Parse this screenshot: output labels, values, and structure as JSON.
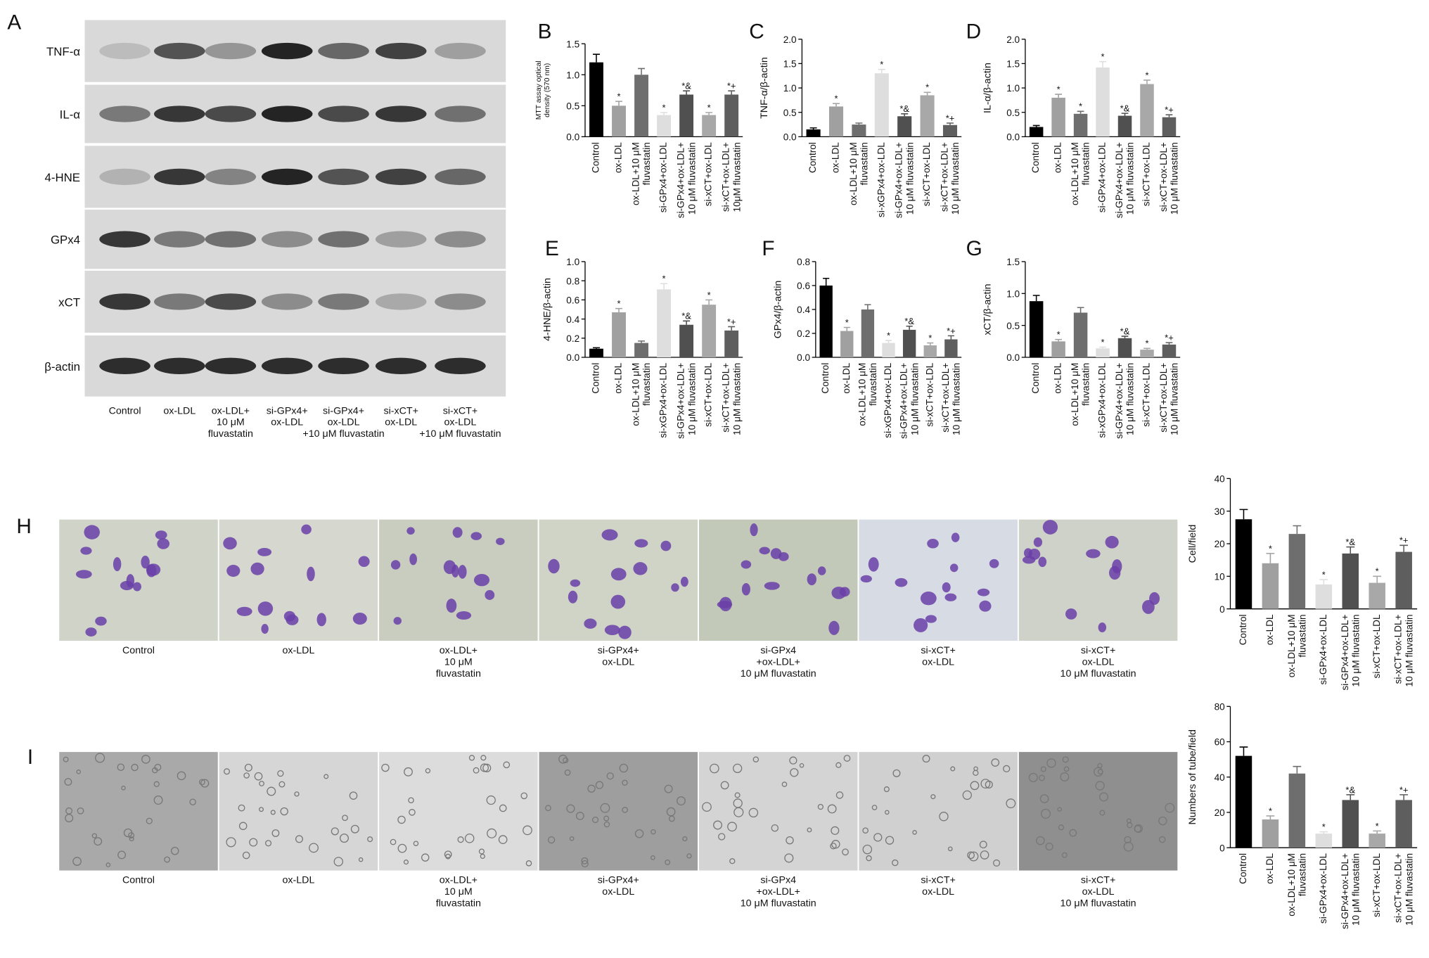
{
  "blot": {
    "panel": "A",
    "rows": [
      "TNF-α",
      "IL-α",
      "4-HNE",
      "GPx4",
      "xCT",
      "β-actin"
    ],
    "lanes": [
      "Control",
      "ox-LDL",
      "ox-LDL+\n10 μM\nfluvastatin",
      "si-GPx4+\nox-LDL",
      "si-GPx4+\nox-LDL\n+10 μM fluvastatin",
      "si-xCT+\nox-LDL",
      "si-xCT+\nox-LDL\n+10 μM fluvastatin"
    ]
  },
  "migration": {
    "captions": [
      "Control",
      "ox-LDL",
      "ox-LDL+\n10 μM\nfluvastatin",
      "si-GPx4+\nox-LDL",
      "si-GPx4\n+ox-LDL+\n10 μM fluvastatin",
      "si-xCT+\nox-LDL",
      "si-xCT+\nox-LDL\n10 μM fluvastatin"
    ]
  },
  "tube": {
    "panel": "I",
    "captions": [
      "Control",
      "ox-LDL",
      "ox-LDL+\n10 μM\nfluvastatin",
      "si-GPx4+\nox-LDL",
      "si-GPx4\n+ox-LDL+\n10 μM fluvastatin",
      "si-xCT+\nox-LDL",
      "si-xCT+\nox-LDL\n10 μM fluvastatin"
    ]
  },
  "chart_data": [
    {
      "type": "bar",
      "panel": "B",
      "ylabel": "MTT assay optical\ndensity (570 nm)",
      "categories": [
        "Control",
        "ox-LDL",
        "ox-LDL+10 μM\nfluvastatin",
        "si-GPx4+ox-LDL",
        "si-GPx4+ox-LDL+\n10 μM fluvastatin",
        "si-xCT+ox-LDL",
        "si-xCT+ox-LDL+\n10μM fluvastatin"
      ],
      "values": [
        1.2,
        0.5,
        1.0,
        0.35,
        0.68,
        0.35,
        0.68
      ],
      "errors": [
        0.13,
        0.07,
        0.1,
        0.04,
        0.06,
        0.04,
        0.06
      ],
      "annotations": [
        null,
        "*",
        null,
        "*",
        "*&",
        "*",
        "*+"
      ],
      "colors": [
        "#000000",
        "#a0a0a0",
        "#6e6e6e",
        "#dedede",
        "#505050",
        "#a8a8a8",
        "#5e5e5e"
      ],
      "ylim": [
        0,
        1.5
      ],
      "yticks": [
        {
          "value": 0,
          "label": "0.0"
        },
        0.5,
        {
          "value": 1,
          "label": "1.0"
        },
        1.5
      ]
    },
    {
      "type": "bar",
      "panel": "C",
      "ylabel": "TNF-α/β-actin",
      "categories": [
        "Control",
        "ox-LDL",
        "ox-LDL+10 μM\nfluvastatin",
        "si-xGPx4+ox-LDL",
        "si-GPx4+ox-LDL+\n10 μM fluvastatin",
        "si-xCT+ox-LDL",
        "si-xCT+ox-LDL+\n10 μM fluvastatin"
      ],
      "values": [
        0.15,
        0.62,
        0.25,
        1.3,
        0.42,
        0.85,
        0.24
      ],
      "errors": [
        0.03,
        0.06,
        0.03,
        0.08,
        0.05,
        0.06,
        0.04
      ],
      "annotations": [
        null,
        "*",
        null,
        "*",
        "*&",
        "*",
        "*+"
      ],
      "colors": [
        "#000000",
        "#a0a0a0",
        "#6e6e6e",
        "#dedede",
        "#505050",
        "#a8a8a8",
        "#5e5e5e"
      ],
      "ylim": [
        0,
        2
      ],
      "yticks": [
        {
          "value": 0,
          "label": "0.0"
        },
        0.5,
        {
          "value": 1,
          "label": "1.0"
        },
        1.5,
        {
          "value": 2,
          "label": "2.0"
        }
      ]
    },
    {
      "type": "bar",
      "panel": "D",
      "ylabel": "IL-α/β-actin",
      "categories": [
        "Control",
        "ox-LDL",
        "ox-LDL+10 μM\nfluvastatin",
        "si-GPx4+ox-LDL",
        "si-GPx4+ox-LDL+\n10 μM fluvastatin",
        "si-xCT+ox-LDL",
        "si-xCT+ox-LDL+\n10 μM fluvastatin"
      ],
      "values": [
        0.2,
        0.8,
        0.47,
        1.42,
        0.43,
        1.08,
        0.4
      ],
      "errors": [
        0.03,
        0.07,
        0.05,
        0.12,
        0.05,
        0.08,
        0.05
      ],
      "annotations": [
        null,
        "*",
        "*",
        "*",
        "*&",
        "*",
        "*+"
      ],
      "colors": [
        "#000000",
        "#a0a0a0",
        "#6e6e6e",
        "#dedede",
        "#505050",
        "#a8a8a8",
        "#5e5e5e"
      ],
      "ylim": [
        0,
        2
      ],
      "yticks": [
        {
          "value": 0,
          "label": "0.0"
        },
        0.5,
        {
          "value": 1,
          "label": "1.0"
        },
        1.5,
        {
          "value": 2,
          "label": "2.0"
        }
      ]
    },
    {
      "type": "bar",
      "panel": "E",
      "ylabel": "4-HNE/β-actin",
      "categories": [
        "Control",
        "ox-LDL",
        "ox-LDL+10 μM\nfluvastatin",
        "si-xGPx4+ox-LDL",
        "si-GPx4+ox-LDL+\n10 μM fluvastatin",
        "si-xCT+ox-LDL",
        "si-xCT+ox-LDL+\n10 μM fluvastatin"
      ],
      "values": [
        0.09,
        0.47,
        0.15,
        0.71,
        0.34,
        0.55,
        0.28
      ],
      "errors": [
        0.01,
        0.04,
        0.02,
        0.06,
        0.04,
        0.05,
        0.04
      ],
      "annotations": [
        null,
        "*",
        null,
        "*",
        "*&",
        "*",
        "*+"
      ],
      "colors": [
        "#000000",
        "#a0a0a0",
        "#6e6e6e",
        "#dedede",
        "#505050",
        "#a8a8a8",
        "#5e5e5e"
      ],
      "ylim": [
        0,
        1
      ],
      "yticks": [
        {
          "value": 0,
          "label": "0.0"
        },
        0.2,
        0.4,
        0.6,
        0.8,
        {
          "value": 1,
          "label": "1.0"
        }
      ]
    },
    {
      "type": "bar",
      "panel": "F",
      "ylabel": "GPx4/β-actin",
      "categories": [
        "Control",
        "ox-LDL",
        "ox-LDL+10 μM\nfluvastatin",
        "si-xGPx4+ox-LDL",
        "si-GPx4+ox-LDL+\n10 μM fluvastatin",
        "si-xCT+ox-LDL",
        "si-xCT+ox-LDL+\n10 μM fluvastatin"
      ],
      "values": [
        0.6,
        0.22,
        0.4,
        0.12,
        0.23,
        0.1,
        0.15
      ],
      "errors": [
        0.06,
        0.03,
        0.04,
        0.02,
        0.03,
        0.02,
        0.03
      ],
      "annotations": [
        null,
        "*",
        null,
        "*",
        "*&",
        "*",
        "*+"
      ],
      "colors": [
        "#000000",
        "#a0a0a0",
        "#6e6e6e",
        "#dedede",
        "#505050",
        "#a8a8a8",
        "#5e5e5e"
      ],
      "ylim": [
        0,
        0.8
      ],
      "yticks": [
        {
          "value": 0,
          "label": "0.0"
        },
        0.2,
        0.4,
        0.6,
        0.8
      ]
    },
    {
      "type": "bar",
      "panel": "G",
      "ylabel": "xCT/β-actin",
      "categories": [
        "Control",
        "ox-LDL",
        "ox-LDL+10 μM\nfluvastatin",
        "si-xGPx4+ox-LDL",
        "si-GPx4+ox-LDL+\n10 μM fluvastatin",
        "si-xCT+ox-LDL",
        "si-xCT+ox-LDL+\n10 μM fluvastatin"
      ],
      "values": [
        0.88,
        0.25,
        0.7,
        0.14,
        0.3,
        0.12,
        0.2
      ],
      "errors": [
        0.09,
        0.03,
        0.08,
        0.02,
        0.03,
        0.02,
        0.03
      ],
      "annotations": [
        null,
        "*",
        null,
        "*",
        "*&",
        "*",
        "*+"
      ],
      "colors": [
        "#000000",
        "#a0a0a0",
        "#6e6e6e",
        "#dedede",
        "#505050",
        "#a8a8a8",
        "#5e5e5e"
      ],
      "ylim": [
        0,
        1.5
      ],
      "yticks": [
        {
          "value": 0,
          "label": "0.0"
        },
        0.5,
        {
          "value": 1,
          "label": "1.0"
        },
        1.5
      ]
    },
    {
      "type": "bar",
      "panel": "H",
      "ylabel": "Cell/field",
      "categories": [
        "Control",
        "ox-LDL",
        "ox-LDL+10 μM\nfluvastatin",
        "si-GPx4+ox-LDL",
        "si-GPx4+ox-LDL+\n10 μM fluvastatin",
        "si-xCT+ox-LDL",
        "si-xCT+ox-LDL+\n10 μM fluvastatin"
      ],
      "values": [
        27.5,
        14,
        23,
        7.5,
        17,
        8,
        17.5
      ],
      "errors": [
        3,
        3,
        2.5,
        1.5,
        2,
        2,
        2
      ],
      "annotations": [
        null,
        "*",
        null,
        "*",
        "*&",
        "*",
        "*+"
      ],
      "colors": [
        "#000000",
        "#a0a0a0",
        "#6e6e6e",
        "#dedede",
        "#505050",
        "#a8a8a8",
        "#5e5e5e"
      ],
      "ylim": [
        0,
        40
      ],
      "yticks": [
        0,
        10,
        20,
        30,
        40
      ]
    },
    {
      "type": "bar",
      "panel": "I",
      "ylabel": "Numbers of tube/field",
      "categories": [
        "Control",
        "ox-LDL",
        "ox-LDL+10 μM\nfluvastatin",
        "si-GPx4+ox-LDL",
        "si-GPx4+ox-LDL+\n10 μM fluvastatin",
        "si-xCT+ox-LDL",
        "si-xCT+ox-LDL+\n10 μM fluvastatin"
      ],
      "values": [
        52,
        16,
        42,
        8,
        27,
        8,
        27
      ],
      "errors": [
        5,
        2,
        4,
        1,
        3,
        1.5,
        3
      ],
      "annotations": [
        null,
        "*",
        null,
        "*",
        "*&",
        "*",
        "*+"
      ],
      "colors": [
        "#000000",
        "#a0a0a0",
        "#6e6e6e",
        "#dedede",
        "#505050",
        "#a8a8a8",
        "#5e5e5e"
      ],
      "ylim": [
        0,
        80
      ],
      "yticks": [
        0,
        20,
        40,
        60,
        80
      ]
    }
  ]
}
